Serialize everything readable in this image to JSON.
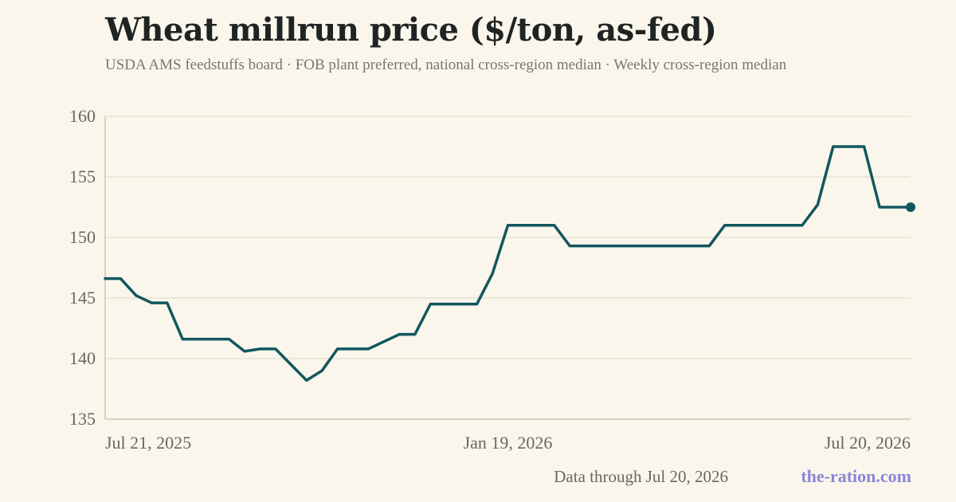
{
  "title": "Wheat millrun price ($/ton, as-fed)",
  "subtitle": "USDA AMS feedstuffs board · FOB plant preferred, national cross-region median · Weekly cross-region median",
  "footer": {
    "data_through": "Data through Jul 20, 2026",
    "brand": "the-ration.com"
  },
  "colors": {
    "background": "#faf6ec",
    "line": "#12575e",
    "grid": "#e8e2d2",
    "axis": "#cfc6b0"
  },
  "chart_data": {
    "type": "line",
    "title": "Wheat millrun price ($/ton, as-fed)",
    "xlabel": "",
    "ylabel": "",
    "ylim": [
      135,
      160
    ],
    "yticks": [
      135,
      140,
      145,
      150,
      155,
      160
    ],
    "grid": true,
    "x_start": "Jul 21, 2025",
    "x_end": "Jul 20, 2026",
    "x_tick_labels": [
      {
        "label": "Jul 21, 2025",
        "week": 0
      },
      {
        "label": "Jan 19, 2026",
        "week": 26
      },
      {
        "label": "Jul 20, 2026",
        "week": 52
      }
    ],
    "series": [
      {
        "values": [
          146.6,
          146.6,
          145.2,
          144.6,
          144.6,
          141.6,
          141.6,
          141.6,
          141.6,
          140.6,
          140.8,
          140.8,
          139.5,
          138.2,
          139.0,
          140.8,
          140.8,
          140.8,
          141.4,
          142.0,
          142.0,
          144.5,
          144.5,
          144.5,
          144.5,
          147.0,
          151.0,
          151.0,
          151.0,
          151.0,
          149.3,
          149.3,
          149.3,
          149.3,
          149.3,
          149.3,
          149.3,
          149.3,
          149.3,
          149.3,
          151.0,
          151.0,
          151.0,
          151.0,
          151.0,
          151.0,
          152.7,
          157.5,
          157.5,
          157.5,
          152.5,
          152.5,
          152.5
        ]
      }
    ],
    "last_point_marker": true
  }
}
